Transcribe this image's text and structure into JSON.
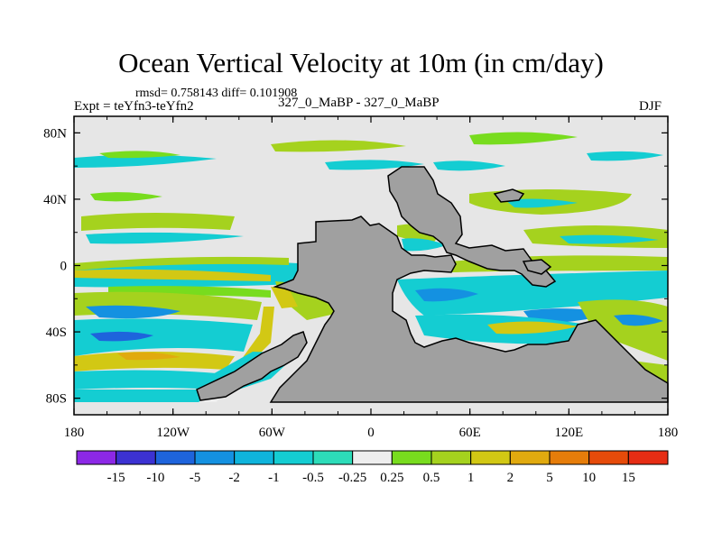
{
  "title": "Ocean Vertical Velocity at 10m (in cm/day)",
  "stats": "rmsd= 0.758143 diff= 0.101908",
  "expt": "Expt = teYfn3-teYfn2",
  "period": "327_0_MaBP - 327_0_MaBP",
  "season": "DJF",
  "colors": {
    "land": "#a0a0a0",
    "near_zero": "#e6e6e6"
  },
  "chart_data": {
    "type": "heatmap",
    "variable": "Ocean Vertical Velocity at 10m",
    "units": "cm/day",
    "x_axis": {
      "range": [
        -180,
        180
      ],
      "ticks": [
        -180,
        -120,
        -60,
        0,
        60,
        120,
        180
      ],
      "tick_labels": [
        "180",
        "120W",
        "60W",
        "0",
        "60E",
        "120E",
        "180"
      ]
    },
    "y_axis": {
      "range": [
        -90,
        90
      ],
      "ticks": [
        80,
        40,
        0,
        -40,
        -80
      ],
      "tick_labels": [
        "80N",
        "40N",
        "0",
        "40S",
        "80S"
      ]
    },
    "colorbar": {
      "levels": [
        -15,
        -10,
        -5,
        -2,
        -1,
        -0.5,
        -0.25,
        0.25,
        0.5,
        1,
        2,
        5,
        10,
        15
      ],
      "labels": [
        "-15",
        "-10",
        "-5",
        "-2",
        "-1",
        "-0.5",
        "-0.25",
        "0.25",
        "0.5",
        "1",
        "2",
        "5",
        "10",
        "15"
      ],
      "colors": [
        "#8c28e6",
        "#3c32d2",
        "#1e64dc",
        "#1491e1",
        "#0fb4dc",
        "#14cdd2",
        "#2ddcb9",
        "#eeeeee",
        "#78dc1e",
        "#a5d21e",
        "#d2c814",
        "#e1aa0f",
        "#e67d0a",
        "#e64b0a",
        "#e62d14"
      ]
    }
  }
}
